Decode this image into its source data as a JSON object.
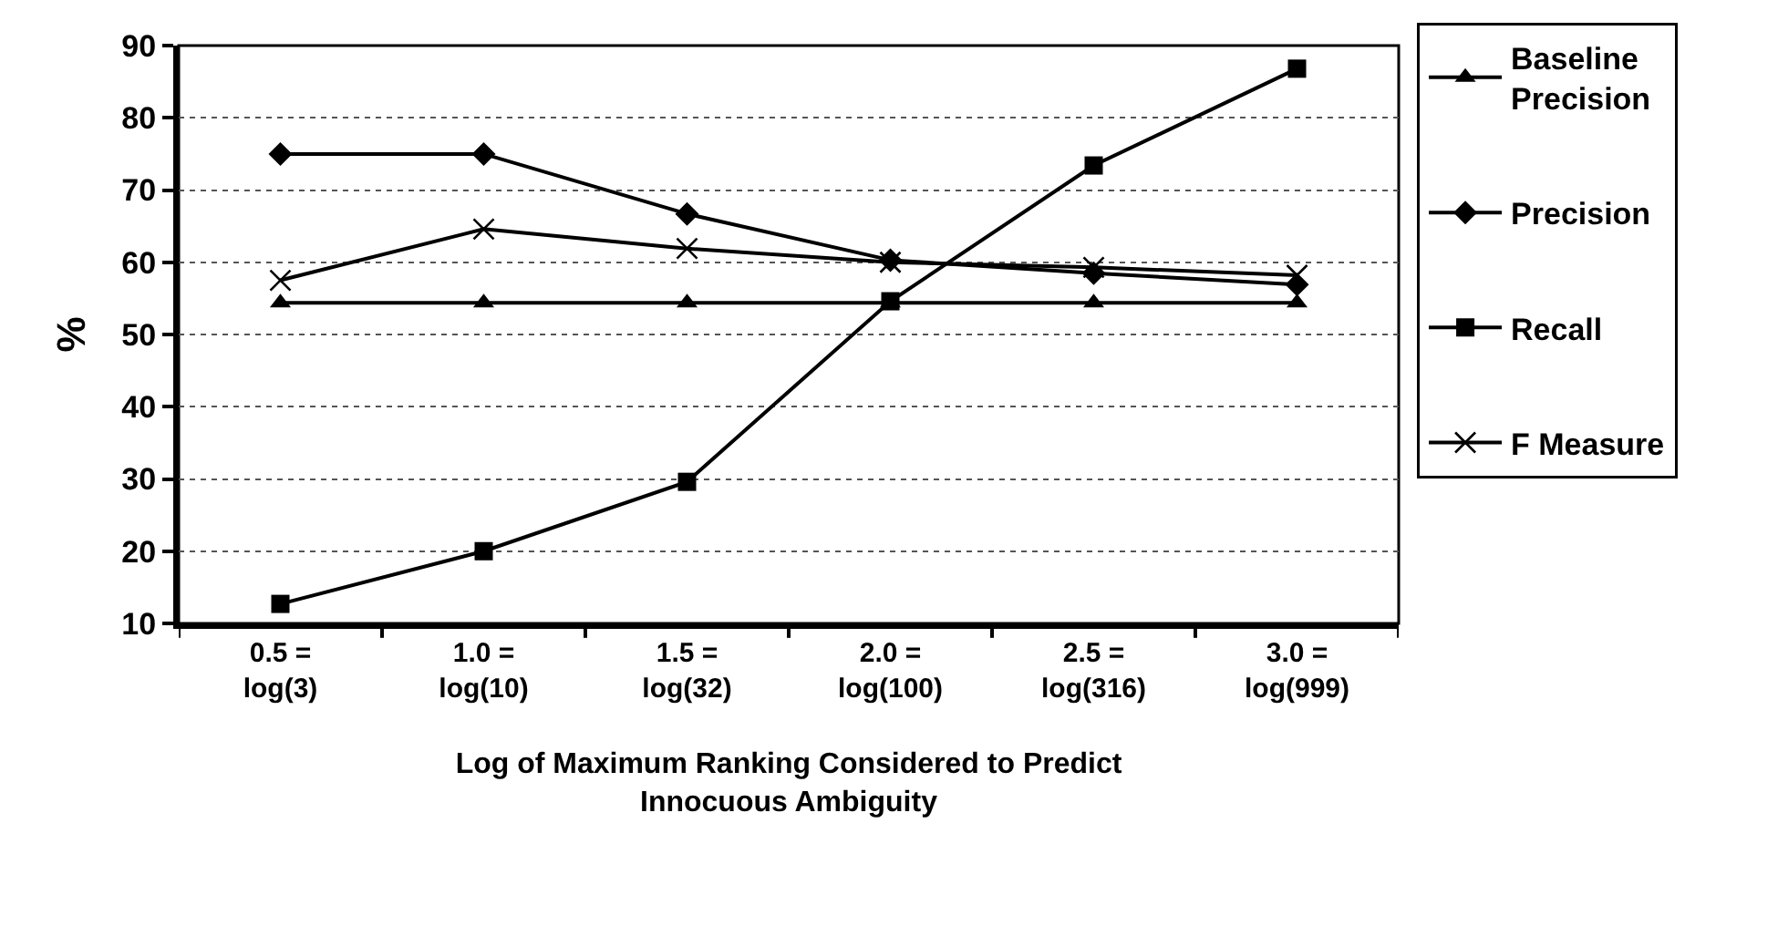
{
  "chart_data": {
    "type": "line",
    "ylabel": "%",
    "xlabel": "Log of Maximum Ranking Considered to Predict\nInnocuous Ambiguity",
    "categories": [
      "0.5 =\nlog(3)",
      "1.0 =\nlog(10)",
      "1.5 =\nlog(32)",
      "2.0 =\nlog(100)",
      "2.5 =\nlog(316)",
      "3.0 =\nlog(999)"
    ],
    "series": [
      {
        "name": "Baseline\nPrecision",
        "color": "#000000",
        "marker": "triangle",
        "values": [
          54.4,
          54.4,
          54.4,
          54.4,
          54.4,
          54.4
        ]
      },
      {
        "name": "Precision",
        "color": "#000000",
        "marker": "diamond",
        "values": [
          75,
          75,
          66.7,
          60.3,
          58.5,
          56.9
        ]
      },
      {
        "name": "Recall",
        "color": "#000000",
        "marker": "square",
        "values": [
          12.7,
          20,
          29.6,
          54.6,
          73.4,
          86.8
        ]
      },
      {
        "name": "F Measure",
        "color": "#000000",
        "marker": "cross",
        "values": [
          57.5,
          64.6,
          61.9,
          60,
          59.3,
          58.2
        ]
      }
    ],
    "ylim": [
      10,
      90
    ],
    "yticks": [
      10,
      20,
      30,
      40,
      50,
      60,
      70,
      80,
      90
    ],
    "grid": "y",
    "legend": "right",
    "line_style": "solid"
  }
}
